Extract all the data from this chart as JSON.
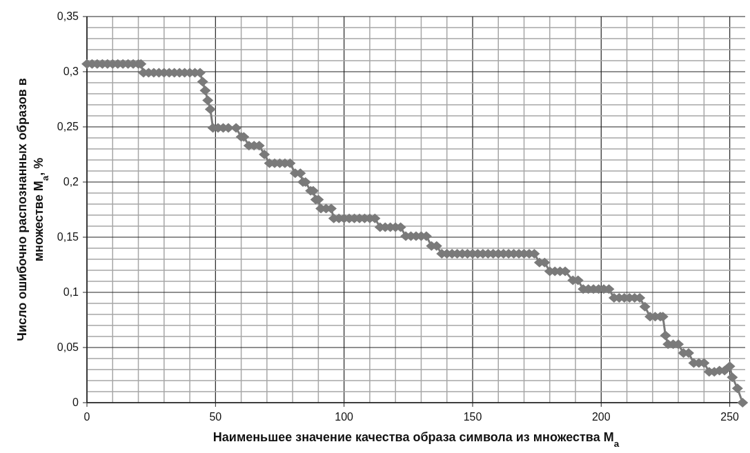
{
  "chart_data": {
    "type": "line",
    "xlabel": "Наименьшее значение качества образа символа из множества M$_{a}$",
    "ylabel": "Число ошибочно распознанных образов в множестве M$_{a}$, %",
    "marker": "diamond",
    "grid": true,
    "xlim": [
      0,
      256
    ],
    "ylim": [
      0,
      0.35
    ],
    "xticks": [
      0,
      {
        "value": 10,
        "label": null
      },
      {
        "value": 20,
        "label": null
      },
      {
        "value": 30,
        "label": null
      },
      {
        "value": 40,
        "label": null
      },
      50,
      {
        "value": 60,
        "label": null
      },
      {
        "value": 70,
        "label": null
      },
      {
        "value": 80,
        "label": null
      },
      {
        "value": 90,
        "label": null
      },
      100,
      {
        "value": 110,
        "label": null
      },
      {
        "value": 120,
        "label": null
      },
      {
        "value": 130,
        "label": null
      },
      {
        "value": 140,
        "label": null
      },
      150,
      {
        "value": 160,
        "label": null
      },
      {
        "value": 170,
        "label": null
      },
      {
        "value": 180,
        "label": null
      },
      {
        "value": 190,
        "label": null
      },
      200,
      {
        "value": 210,
        "label": null
      },
      {
        "value": 220,
        "label": null
      },
      {
        "value": 230,
        "label": null
      },
      {
        "value": 240,
        "label": null
      },
      250
    ],
    "yticks": [
      0,
      {
        "value": 0.01,
        "label": null
      },
      {
        "value": 0.02,
        "label": null
      },
      {
        "value": 0.03,
        "label": null
      },
      {
        "value": 0.04,
        "label": null
      },
      {
        "value": 0.05,
        "label": "0,05"
      },
      {
        "value": 0.06,
        "label": null
      },
      {
        "value": 0.07,
        "label": null
      },
      {
        "value": 0.08,
        "label": null
      },
      {
        "value": 0.09,
        "label": null
      },
      {
        "value": 0.1,
        "label": "0,1"
      },
      {
        "value": 0.11,
        "label": null
      },
      {
        "value": 0.12,
        "label": null
      },
      {
        "value": 0.13,
        "label": null
      },
      {
        "value": 0.14,
        "label": null
      },
      {
        "value": 0.15,
        "label": "0,15"
      },
      {
        "value": 0.16,
        "label": null
      },
      {
        "value": 0.17,
        "label": null
      },
      {
        "value": 0.18,
        "label": null
      },
      {
        "value": 0.19,
        "label": null
      },
      {
        "value": 0.2,
        "label": "0,2"
      },
      {
        "value": 0.21,
        "label": null
      },
      {
        "value": 0.22,
        "label": null
      },
      {
        "value": 0.23,
        "label": null
      },
      {
        "value": 0.24,
        "label": null
      },
      {
        "value": 0.25,
        "label": "0,25"
      },
      {
        "value": 0.26,
        "label": null
      },
      {
        "value": 0.27,
        "label": null
      },
      {
        "value": 0.28,
        "label": null
      },
      {
        "value": 0.29,
        "label": null
      },
      {
        "value": 0.3,
        "label": "0,3"
      },
      {
        "value": 0.31,
        "label": null
      },
      {
        "value": 0.32,
        "label": null
      },
      {
        "value": 0.33,
        "label": null
      },
      {
        "value": 0.34,
        "label": null
      },
      {
        "value": 0.35,
        "label": "0,35"
      }
    ],
    "series": [
      {
        "color": "#7a7a7a",
        "x": [
          0,
          2,
          4,
          6,
          8,
          10,
          12,
          14,
          16,
          18,
          20,
          21,
          22,
          24,
          26,
          28,
          30,
          32,
          34,
          36,
          38,
          40,
          42,
          44,
          45,
          46,
          47,
          48,
          49,
          51,
          53,
          55,
          58,
          60,
          61,
          63,
          65,
          67,
          69,
          71,
          73,
          75,
          77,
          79,
          81,
          83,
          84,
          85,
          87,
          88,
          89,
          90,
          91,
          93,
          95,
          96,
          98,
          100,
          102,
          104,
          106,
          108,
          110,
          112,
          114,
          116,
          118,
          120,
          122,
          124,
          126,
          128,
          130,
          132,
          134,
          136,
          138,
          140,
          142,
          144,
          146,
          148,
          150,
          152,
          154,
          156,
          158,
          160,
          162,
          164,
          166,
          168,
          170,
          172,
          174,
          176,
          178,
          180,
          182,
          184,
          186,
          189,
          191,
          193,
          195,
          197,
          199,
          201,
          203,
          205,
          207,
          209,
          211,
          213,
          215,
          217,
          219,
          221,
          223,
          224,
          225,
          226,
          228,
          230,
          232,
          234,
          236,
          238,
          240,
          242,
          244,
          246,
          248,
          250,
          251,
          253,
          255
        ],
        "values": [
          0.307,
          0.307,
          0.307,
          0.307,
          0.307,
          0.307,
          0.307,
          0.307,
          0.307,
          0.307,
          0.307,
          0.307,
          0.299,
          0.299,
          0.299,
          0.299,
          0.299,
          0.299,
          0.299,
          0.299,
          0.299,
          0.299,
          0.299,
          0.299,
          0.291,
          0.283,
          0.274,
          0.266,
          0.249,
          0.249,
          0.249,
          0.249,
          0.249,
          0.241,
          0.241,
          0.233,
          0.233,
          0.233,
          0.225,
          0.217,
          0.217,
          0.217,
          0.217,
          0.217,
          0.208,
          0.208,
          0.2,
          0.2,
          0.192,
          0.192,
          0.184,
          0.184,
          0.176,
          0.176,
          0.176,
          0.167,
          0.167,
          0.167,
          0.167,
          0.167,
          0.167,
          0.167,
          0.167,
          0.167,
          0.159,
          0.159,
          0.159,
          0.159,
          0.159,
          0.151,
          0.151,
          0.151,
          0.151,
          0.151,
          0.142,
          0.142,
          0.135,
          0.135,
          0.135,
          0.135,
          0.135,
          0.135,
          0.135,
          0.135,
          0.135,
          0.135,
          0.135,
          0.135,
          0.135,
          0.135,
          0.135,
          0.135,
          0.135,
          0.135,
          0.135,
          0.127,
          0.127,
          0.119,
          0.119,
          0.119,
          0.119,
          0.111,
          0.111,
          0.103,
          0.103,
          0.103,
          0.103,
          0.103,
          0.103,
          0.095,
          0.095,
          0.095,
          0.095,
          0.095,
          0.095,
          0.087,
          0.078,
          0.078,
          0.078,
          0.078,
          0.061,
          0.053,
          0.053,
          0.053,
          0.045,
          0.045,
          0.036,
          0.036,
          0.036,
          0.028,
          0.028,
          0.029,
          0.029,
          0.033,
          0.023,
          0.013,
          0
        ]
      }
    ]
  }
}
